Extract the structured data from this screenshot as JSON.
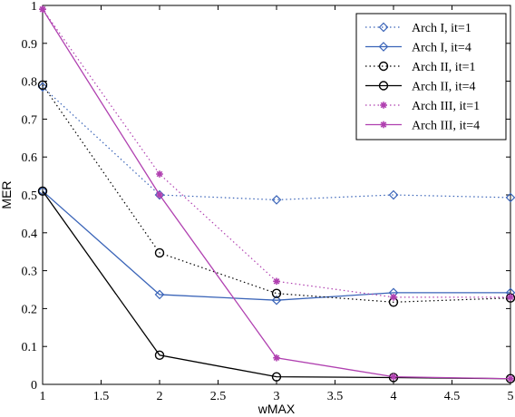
{
  "chart_data": {
    "type": "line",
    "title": "",
    "xlabel": "wMAX",
    "ylabel": "MER",
    "xlim": [
      1,
      5
    ],
    "ylim": [
      0,
      1
    ],
    "x_ticks": [
      "1",
      "1.5",
      "2",
      "2.5",
      "3",
      "3.5",
      "4",
      "4.5",
      "5"
    ],
    "y_ticks": [
      "0",
      "0.1",
      "0.2",
      "0.3",
      "0.4",
      "0.5",
      "0.6",
      "0.7",
      "0.8",
      "0.9",
      "1"
    ],
    "grid": false,
    "legend_position": "top-right",
    "x": [
      1,
      2,
      3,
      4,
      5
    ],
    "series": [
      {
        "name": "Arch I, it=1",
        "values": [
          0.785,
          0.5,
          0.487,
          0.5,
          0.493
        ],
        "color": "#3a64b8",
        "linestyle": "dotted",
        "marker": "diamond"
      },
      {
        "name": "Arch I, it=4",
        "values": [
          0.51,
          0.237,
          0.222,
          0.242,
          0.242
        ],
        "color": "#3a64b8",
        "linestyle": "solid",
        "marker": "diamond"
      },
      {
        "name": "Arch II, it=1",
        "values": [
          0.79,
          0.347,
          0.24,
          0.217,
          0.228
        ],
        "color": "#000000",
        "linestyle": "dotted",
        "marker": "circle"
      },
      {
        "name": "Arch II, it=4",
        "values": [
          0.51,
          0.077,
          0.02,
          0.018,
          0.015
        ],
        "color": "#000000",
        "linestyle": "solid",
        "marker": "circle"
      },
      {
        "name": "Arch III, it=1",
        "values": [
          0.99,
          0.555,
          0.272,
          0.23,
          0.23
        ],
        "color": "#b040b0",
        "linestyle": "dotted",
        "marker": "star"
      },
      {
        "name": "Arch III, it=4",
        "values": [
          0.99,
          0.5,
          0.07,
          0.02,
          0.015
        ],
        "color": "#b040b0",
        "linestyle": "solid",
        "marker": "star"
      }
    ]
  }
}
